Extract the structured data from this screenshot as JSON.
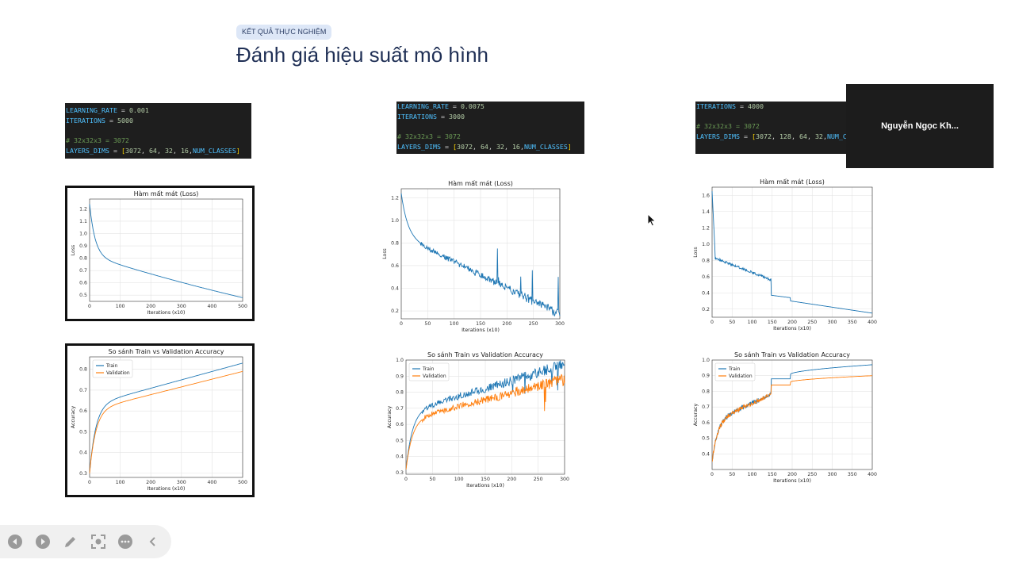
{
  "slide": {
    "badge": "KẾT QUẢ THỰC NGHIỆM",
    "title": "Đánh giá hiệu suất mô hình"
  },
  "code_blocks": [
    {
      "lines": [
        [
          [
            "k",
            "LEARNING_RATE"
          ],
          [
            "t",
            " = "
          ],
          [
            "n",
            "0.001"
          ]
        ],
        [
          [
            "k",
            "ITERATIONS"
          ],
          [
            "t",
            " = "
          ],
          [
            "n",
            "5000"
          ]
        ],
        [
          [
            "t",
            ""
          ]
        ],
        [
          [
            "c",
            "# 32x32x3 = 3072"
          ]
        ],
        [
          [
            "k",
            "LAYERS_DIMS"
          ],
          [
            "t",
            " = "
          ],
          [
            "b",
            "["
          ],
          [
            "n",
            "3072"
          ],
          [
            "t",
            ", "
          ],
          [
            "n",
            "64"
          ],
          [
            "t",
            ", "
          ],
          [
            "n",
            "32"
          ],
          [
            "t",
            ", "
          ],
          [
            "n",
            "16"
          ],
          [
            "t",
            ","
          ],
          [
            "cl",
            "NUM_CLASSES"
          ],
          [
            "b",
            "]"
          ]
        ]
      ]
    },
    {
      "lines": [
        [
          [
            "k",
            "LEARNING_RATE"
          ],
          [
            "t",
            " = "
          ],
          [
            "n",
            "0.0075"
          ]
        ],
        [
          [
            "k",
            "ITERATIONS"
          ],
          [
            "t",
            " = "
          ],
          [
            "n",
            "3000"
          ]
        ],
        [
          [
            "t",
            ""
          ]
        ],
        [
          [
            "c",
            "# 32x32x3 = 3072"
          ]
        ],
        [
          [
            "k",
            "LAYERS_DIMS"
          ],
          [
            "t",
            " = "
          ],
          [
            "b",
            "["
          ],
          [
            "n",
            "3072"
          ],
          [
            "t",
            ", "
          ],
          [
            "n",
            "64"
          ],
          [
            "t",
            ", "
          ],
          [
            "n",
            "32"
          ],
          [
            "t",
            ", "
          ],
          [
            "n",
            "16"
          ],
          [
            "t",
            ","
          ],
          [
            "cl",
            "NUM_CLASSES"
          ],
          [
            "b",
            "]"
          ]
        ]
      ]
    },
    {
      "lines": [
        [
          [
            "k",
            "ITERATIONS"
          ],
          [
            "t",
            " = "
          ],
          [
            "n",
            "4000"
          ]
        ],
        [
          [
            "t",
            ""
          ]
        ],
        [
          [
            "c",
            "# 32x32x3 = 3072"
          ]
        ],
        [
          [
            "k",
            "LAYERS_DIMS"
          ],
          [
            "t",
            " = "
          ],
          [
            "b",
            "["
          ],
          [
            "n",
            "3072"
          ],
          [
            "t",
            ", "
          ],
          [
            "n",
            "128"
          ],
          [
            "t",
            ", "
          ],
          [
            "n",
            "64"
          ],
          [
            "t",
            ", "
          ],
          [
            "n",
            "32"
          ],
          [
            "t",
            ","
          ],
          [
            "cl",
            "NUM_CLASSES"
          ],
          [
            "b",
            "]"
          ]
        ]
      ]
    }
  ],
  "chart_data": [
    {
      "type": "line",
      "title": "Hàm mất mát (Loss)",
      "xlabel": "Iterations (x10)",
      "ylabel": "Loss",
      "xlim": [
        0,
        500
      ],
      "ylim": [
        0.45,
        1.28
      ],
      "xticks": [
        0,
        100,
        200,
        300,
        400,
        500
      ],
      "yticks": [
        0.5,
        0.6,
        0.7,
        0.8,
        0.9,
        1.0,
        1.1,
        1.2
      ],
      "grid": true,
      "series": [
        {
          "color": "#1f77b4",
          "shape": "decay",
          "start": 1.24,
          "end": 0.48,
          "n": 500
        }
      ]
    },
    {
      "type": "line",
      "title": "Hàm mất mát (Loss)",
      "xlabel": "Iterations (x10)",
      "ylabel": "Loss",
      "xlim": [
        0,
        300
      ],
      "ylim": [
        0.13,
        1.28
      ],
      "xticks": [
        0,
        50,
        100,
        150,
        200,
        250,
        300
      ],
      "yticks": [
        0.2,
        0.4,
        0.6,
        0.8,
        1.0,
        1.2
      ],
      "grid": true,
      "series": [
        {
          "color": "#1f77b4",
          "shape": "noisy_decay",
          "start": 1.24,
          "end": 0.17,
          "n": 300
        }
      ]
    },
    {
      "type": "line",
      "title": "Hàm mất mát (Loss)",
      "xlabel": "Iterations (x10)",
      "ylabel": "Loss",
      "xlim": [
        0,
        400
      ],
      "ylim": [
        0.1,
        1.7
      ],
      "xticks": [
        0,
        50,
        100,
        150,
        200,
        250,
        300,
        350,
        400
      ],
      "yticks": [
        0.2,
        0.4,
        0.6,
        0.8,
        1.0,
        1.2,
        1.4,
        1.6
      ],
      "grid": true,
      "series": [
        {
          "color": "#1f77b4",
          "shape": "step_decay",
          "start": 1.65,
          "end": 0.15,
          "n": 400
        }
      ]
    },
    {
      "type": "line",
      "title": "So sánh Train vs Validation Accuracy",
      "xlabel": "Iterations (x10)",
      "ylabel": "Accuracy",
      "xlim": [
        0,
        500
      ],
      "ylim": [
        0.28,
        0.86
      ],
      "xticks": [
        0,
        100,
        200,
        300,
        400,
        500
      ],
      "yticks": [
        0.3,
        0.4,
        0.5,
        0.6,
        0.7,
        0.8
      ],
      "grid": true,
      "legend": "top-left",
      "series": [
        {
          "name": "Train",
          "color": "#1f77b4",
          "shape": "rise",
          "start": 0.3,
          "end": 0.83,
          "n": 500
        },
        {
          "name": "Validation",
          "color": "#ff7f0e",
          "shape": "rise",
          "start": 0.3,
          "end": 0.79,
          "n": 500
        }
      ]
    },
    {
      "type": "line",
      "title": "So sánh Train vs Validation Accuracy",
      "xlabel": "Iterations (x10)",
      "ylabel": "Accuracy",
      "xlim": [
        0,
        300
      ],
      "ylim": [
        0.29,
        1.0
      ],
      "xticks": [
        0,
        50,
        100,
        150,
        200,
        250,
        300
      ],
      "yticks": [
        0.3,
        0.4,
        0.5,
        0.6,
        0.7,
        0.8,
        0.9,
        1.0
      ],
      "grid": true,
      "legend": "top-left",
      "series": [
        {
          "name": "Train",
          "color": "#1f77b4",
          "shape": "noisy_rise",
          "start": 0.32,
          "end": 0.97,
          "n": 300
        },
        {
          "name": "Validation",
          "color": "#ff7f0e",
          "shape": "noisy_rise",
          "start": 0.32,
          "end": 0.88,
          "n": 300
        }
      ]
    },
    {
      "type": "line",
      "title": "So sánh Train vs Validation Accuracy",
      "xlabel": "Iterations (x10)",
      "ylabel": "Accuracy",
      "xlim": [
        0,
        400
      ],
      "ylim": [
        0.3,
        1.0
      ],
      "xticks": [
        0,
        50,
        100,
        150,
        200,
        250,
        300,
        350,
        400
      ],
      "yticks": [
        0.4,
        0.5,
        0.6,
        0.7,
        0.8,
        0.9,
        1.0
      ],
      "grid": true,
      "legend": "top-left",
      "series": [
        {
          "name": "Train",
          "color": "#1f77b4",
          "shape": "step_rise",
          "start": 0.35,
          "end": 0.97,
          "n": 400
        },
        {
          "name": "Validation",
          "color": "#ff7f0e",
          "shape": "step_rise",
          "start": 0.35,
          "end": 0.9,
          "n": 400
        }
      ]
    }
  ],
  "video": {
    "name": "Nguyễn Ngọc Kh..."
  },
  "toolbar": {
    "icons": [
      "prev-icon",
      "next-icon",
      "pen-icon",
      "focus-icon",
      "more-icon",
      "collapse-icon"
    ]
  }
}
